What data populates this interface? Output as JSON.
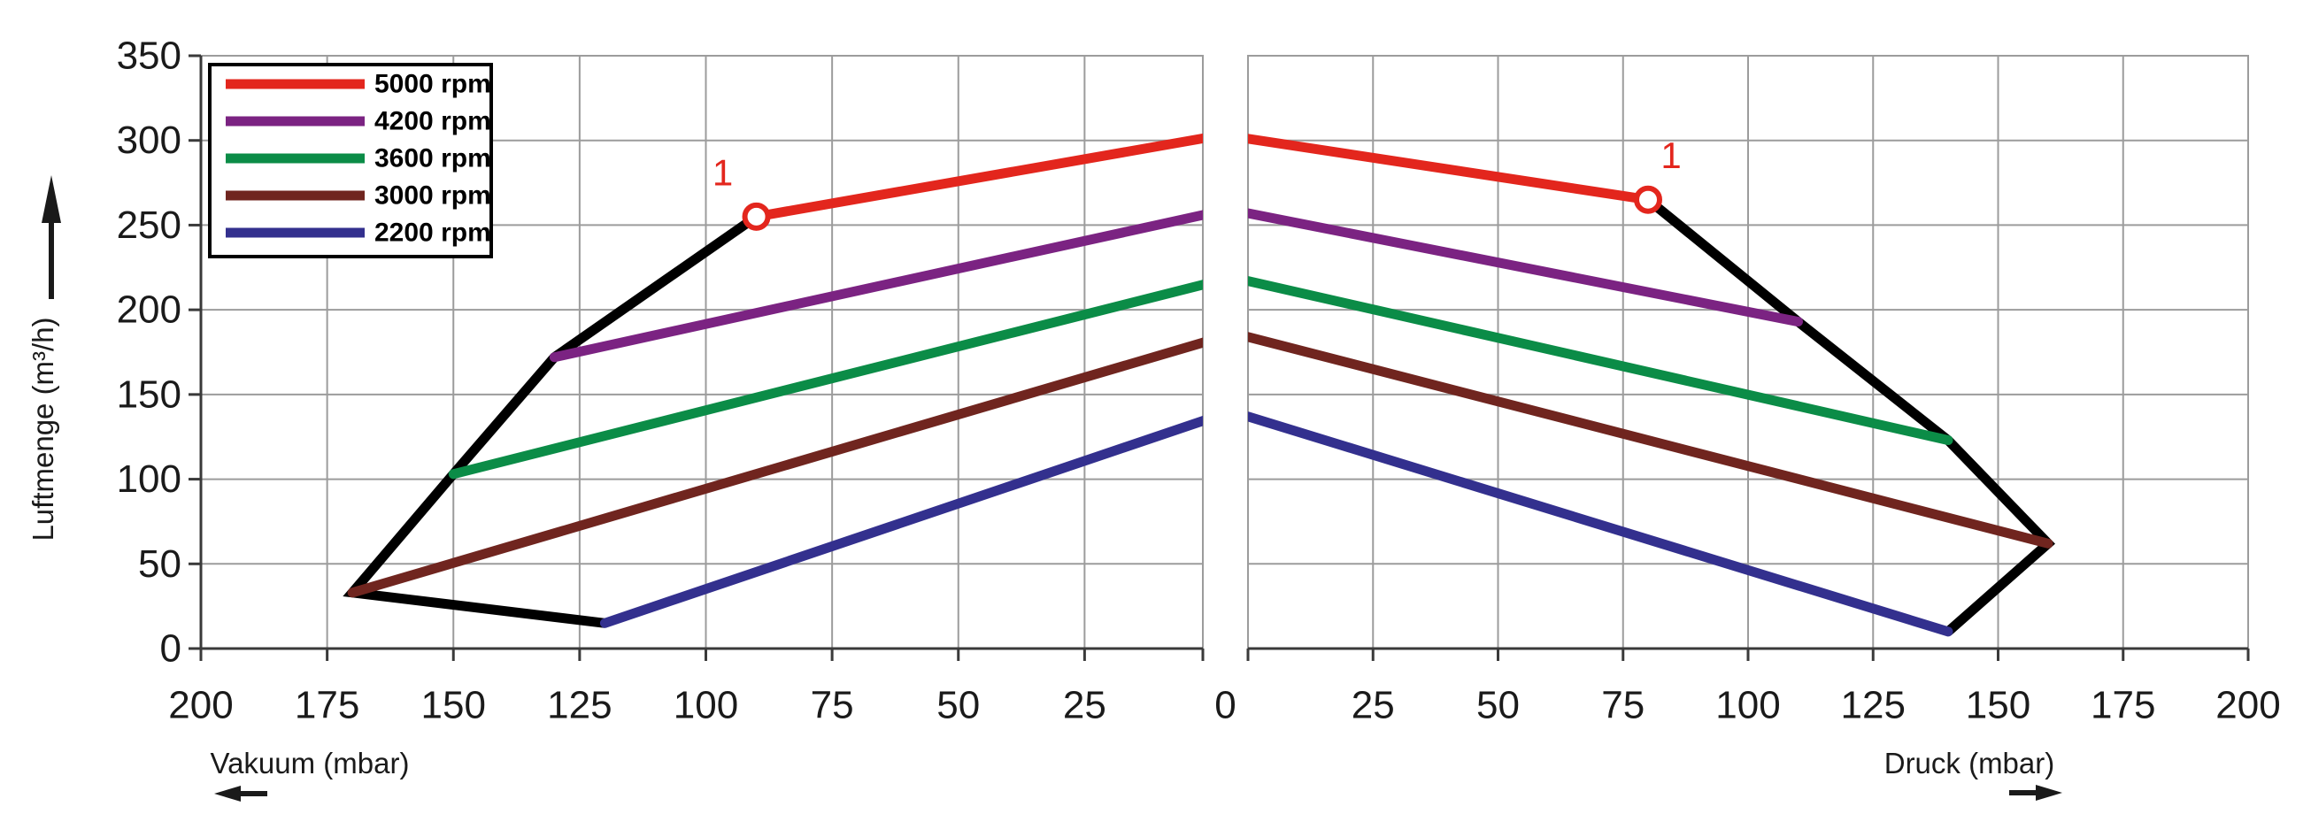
{
  "chart_data": {
    "type": "line",
    "title": "",
    "ylabel": "Luftmenge (m³/h)",
    "ylim": [
      0,
      350
    ],
    "y_ticks": [
      0,
      50,
      100,
      150,
      200,
      250,
      300,
      350
    ],
    "grid": true,
    "shared_zero_label": "0",
    "panels": [
      {
        "id": "vakuum",
        "xlabel": "Vakuum (mbar)",
        "direction": "left",
        "xlim": [
          0,
          200
        ],
        "x_ticks": [
          200,
          175,
          150,
          125,
          100,
          75,
          50,
          25
        ]
      },
      {
        "id": "druck",
        "xlabel": "Druck (mbar)",
        "direction": "right",
        "xlim": [
          0,
          200
        ],
        "x_ticks": [
          25,
          50,
          75,
          100,
          125,
          150,
          175,
          200
        ]
      }
    ],
    "legend": {
      "position": "top-left",
      "entries": [
        {
          "label": "5000 rpm",
          "color": "#e3261d"
        },
        {
          "label": "4200 rpm",
          "color": "#7b2382"
        },
        {
          "label": "3600 rpm",
          "color": "#0b8c47"
        },
        {
          "label": "3000 rpm",
          "color": "#70251f"
        },
        {
          "label": "2200 rpm",
          "color": "#33308e"
        }
      ]
    },
    "series": [
      {
        "name": "5000 rpm",
        "color": "#e3261d",
        "vakuum": [
          [
            90,
            255
          ],
          [
            0,
            302
          ]
        ],
        "druck": [
          [
            0,
            301
          ],
          [
            80,
            265
          ]
        ]
      },
      {
        "name": "4200 rpm",
        "color": "#7b2382",
        "vakuum": [
          [
            130,
            172
          ],
          [
            0,
            257
          ]
        ],
        "druck": [
          [
            0,
            257
          ],
          [
            110,
            193
          ]
        ]
      },
      {
        "name": "3600 rpm",
        "color": "#0b8c47",
        "vakuum": [
          [
            150,
            103
          ],
          [
            0,
            216
          ]
        ],
        "druck": [
          [
            0,
            217
          ],
          [
            140,
            123
          ]
        ]
      },
      {
        "name": "3000 rpm",
        "color": "#70251f",
        "vakuum": [
          [
            170,
            33
          ],
          [
            0,
            182
          ]
        ],
        "druck": [
          [
            0,
            184
          ],
          [
            160,
            62
          ]
        ]
      },
      {
        "name": "2200 rpm",
        "color": "#33308e",
        "vakuum": [
          [
            120,
            15
          ],
          [
            0,
            136
          ]
        ],
        "druck": [
          [
            0,
            137
          ],
          [
            140,
            10
          ]
        ]
      }
    ],
    "envelope": {
      "color": "#000000",
      "vakuum": [
        [
          120,
          15
        ],
        [
          170,
          33
        ],
        [
          150,
          103
        ],
        [
          130,
          172
        ],
        [
          90,
          255
        ]
      ],
      "druck": [
        [
          80,
          265
        ],
        [
          110,
          193
        ],
        [
          140,
          123
        ],
        [
          160,
          62
        ],
        [
          140,
          10
        ]
      ]
    },
    "markers": [
      {
        "label": "1",
        "panel": "vakuum",
        "x": 90,
        "y": 255
      },
      {
        "label": "1",
        "panel": "druck",
        "x": 80,
        "y": 265
      }
    ],
    "marker_color": "#e3261d",
    "icons": {
      "y_axis_arrow": "up-arrow-icon",
      "vakuum_arrow": "left-arrow-icon",
      "druck_arrow": "right-arrow-icon"
    },
    "colors": {
      "grid": "#9c9c9c",
      "axis": "#3a3a3a",
      "text": "#1a1a1a",
      "background": "#ffffff"
    }
  }
}
